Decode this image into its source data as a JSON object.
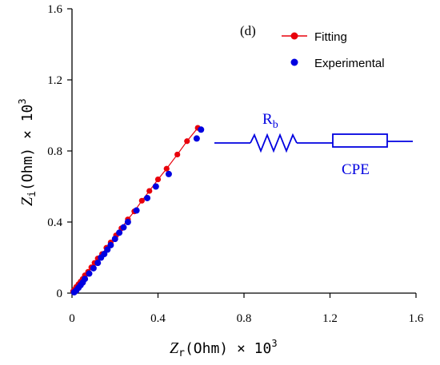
{
  "colors": {
    "fitting": "#e8000b",
    "experimental": "#0000e0",
    "axis": "#000000",
    "circuit": "#0000e0"
  },
  "chart_data": {
    "type": "scatter",
    "panel_label": "(d)",
    "xlabel": {
      "var": "Z",
      "sub": "r",
      "unit": "(Ohm) × 10",
      "sup": "3"
    },
    "ylabel": {
      "var": "Z",
      "sub": "i",
      "unit": "(Ohm) × 10",
      "sup": "3"
    },
    "xlim": [
      0,
      1.6
    ],
    "ylim": [
      0,
      1.6
    ],
    "xticks": [
      0,
      0.4,
      0.8,
      1.2,
      1.6
    ],
    "yticks": [
      0,
      0.4,
      0.8,
      1.2,
      1.6
    ],
    "xtick_labels": [
      "0",
      "0.4",
      "0.8",
      "1.2",
      "1.6"
    ],
    "ytick_labels": [
      "0",
      "0.4",
      "0.8",
      "1.2",
      "1.6"
    ],
    "legend_position": "top-right",
    "series": [
      {
        "name": "Fitting",
        "style": "line+markers",
        "color": "#e8000b",
        "x": [
          0.005,
          0.012,
          0.02,
          0.03,
          0.04,
          0.05,
          0.06,
          0.075,
          0.09,
          0.105,
          0.12,
          0.14,
          0.16,
          0.18,
          0.205,
          0.23,
          0.26,
          0.29,
          0.325,
          0.36,
          0.4,
          0.44,
          0.49,
          0.535,
          0.585
        ],
        "y": [
          0.01,
          0.02,
          0.035,
          0.05,
          0.065,
          0.08,
          0.1,
          0.12,
          0.145,
          0.17,
          0.195,
          0.22,
          0.255,
          0.285,
          0.325,
          0.365,
          0.415,
          0.46,
          0.52,
          0.575,
          0.64,
          0.7,
          0.78,
          0.855,
          0.93
        ]
      },
      {
        "name": "Experimental",
        "style": "markers",
        "color": "#0000e0",
        "x": [
          0.01,
          0.02,
          0.03,
          0.04,
          0.05,
          0.06,
          0.08,
          0.1,
          0.12,
          0.135,
          0.15,
          0.165,
          0.18,
          0.2,
          0.22,
          0.24,
          0.26,
          0.3,
          0.35,
          0.39,
          0.45,
          0.58,
          0.6
        ],
        "y": [
          0.005,
          0.015,
          0.03,
          0.045,
          0.06,
          0.08,
          0.11,
          0.14,
          0.17,
          0.2,
          0.22,
          0.245,
          0.27,
          0.305,
          0.34,
          0.37,
          0.4,
          0.465,
          0.535,
          0.6,
          0.67,
          0.87,
          0.92
        ]
      }
    ],
    "inset_circuit": {
      "elements": [
        "R_b",
        "CPE"
      ],
      "labels": {
        "resistor": "R",
        "resistor_sub": "b",
        "cpe": "CPE"
      }
    }
  }
}
